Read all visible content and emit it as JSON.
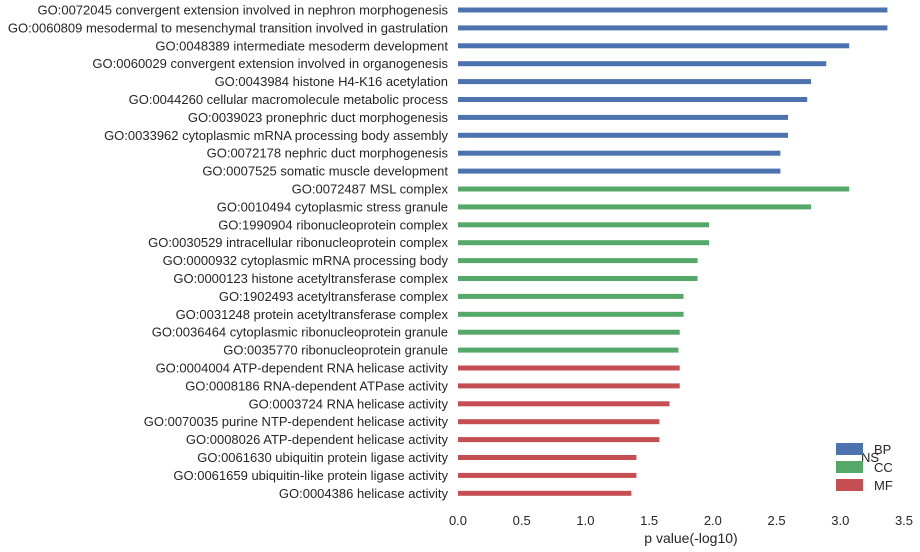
{
  "chart_data": {
    "type": "bar",
    "orientation": "horizontal",
    "title": "",
    "xlabel": "p value(-log10)",
    "ylabel": "",
    "xlim": [
      0,
      3.5
    ],
    "xticks": [
      "0.0",
      "0.5",
      "1.0",
      "1.5",
      "2.0",
      "2.5",
      "3.0",
      "3.5"
    ],
    "grid": false,
    "legend": {
      "title": "NS",
      "position": "bottom-right",
      "entries": [
        {
          "name": "BP",
          "color": "#4c72b0"
        },
        {
          "name": "CC",
          "color": "#55a868"
        },
        {
          "name": "MF",
          "color": "#c44e52"
        }
      ]
    },
    "bars": [
      {
        "label": "GO:0072045 convergent extension involved in nephron morphogenesis",
        "value": 3.37,
        "group": "BP"
      },
      {
        "label": "GO:0060809 mesodermal to mesenchymal transition involved in gastrulation",
        "value": 3.37,
        "group": "BP"
      },
      {
        "label": "GO:0048389 intermediate mesoderm development",
        "value": 3.07,
        "group": "BP"
      },
      {
        "label": "GO:0060029 convergent extension involved in organogenesis",
        "value": 2.89,
        "group": "BP"
      },
      {
        "label": "GO:0043984 histone H4-K16 acetylation",
        "value": 2.77,
        "group": "BP"
      },
      {
        "label": "GO:0044260 cellular macromolecule metabolic process",
        "value": 2.74,
        "group": "BP"
      },
      {
        "label": "GO:0039023 pronephric duct morphogenesis",
        "value": 2.59,
        "group": "BP"
      },
      {
        "label": "GO:0033962 cytoplasmic mRNA processing body assembly",
        "value": 2.59,
        "group": "BP"
      },
      {
        "label": "GO:0072178 nephric duct morphogenesis",
        "value": 2.53,
        "group": "BP"
      },
      {
        "label": "GO:0007525 somatic muscle development",
        "value": 2.53,
        "group": "BP"
      },
      {
        "label": "GO:0072487 MSL complex",
        "value": 3.07,
        "group": "CC"
      },
      {
        "label": "GO:0010494 cytoplasmic stress granule",
        "value": 2.77,
        "group": "CC"
      },
      {
        "label": "GO:1990904 ribonucleoprotein complex",
        "value": 1.97,
        "group": "CC"
      },
      {
        "label": "GO:0030529 intracellular ribonucleoprotein complex",
        "value": 1.97,
        "group": "CC"
      },
      {
        "label": "GO:0000932 cytoplasmic mRNA processing body",
        "value": 1.88,
        "group": "CC"
      },
      {
        "label": "GO:0000123 histone acetyltransferase complex",
        "value": 1.88,
        "group": "CC"
      },
      {
        "label": "GO:1902493 acetyltransferase complex",
        "value": 1.77,
        "group": "CC"
      },
      {
        "label": "GO:0031248 protein acetyltransferase complex",
        "value": 1.77,
        "group": "CC"
      },
      {
        "label": "GO:0036464 cytoplasmic ribonucleoprotein granule",
        "value": 1.74,
        "group": "CC"
      },
      {
        "label": "GO:0035770 ribonucleoprotein granule",
        "value": 1.73,
        "group": "CC"
      },
      {
        "label": "GO:0004004 ATP-dependent RNA helicase activity",
        "value": 1.74,
        "group": "MF"
      },
      {
        "label": "GO:0008186 RNA-dependent ATPase activity",
        "value": 1.74,
        "group": "MF"
      },
      {
        "label": "GO:0003724 RNA helicase activity",
        "value": 1.66,
        "group": "MF"
      },
      {
        "label": "GO:0070035 purine NTP-dependent helicase activity",
        "value": 1.58,
        "group": "MF"
      },
      {
        "label": "GO:0008026 ATP-dependent helicase activity",
        "value": 1.58,
        "group": "MF"
      },
      {
        "label": "GO:0061630 ubiquitin protein ligase activity",
        "value": 1.4,
        "group": "MF"
      },
      {
        "label": "GO:0061659 ubiquitin-like protein ligase activity",
        "value": 1.4,
        "group": "MF"
      },
      {
        "label": "GO:0004386 helicase activity",
        "value": 1.36,
        "group": "MF"
      }
    ]
  }
}
